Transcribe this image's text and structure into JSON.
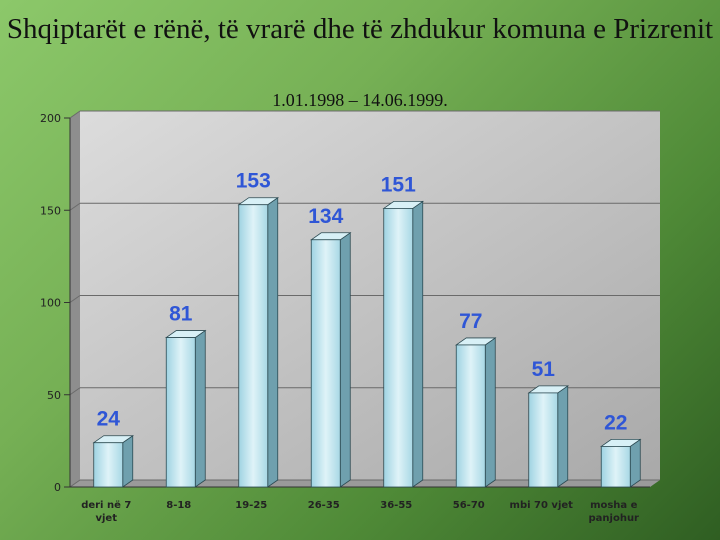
{
  "slide": {
    "title": "Shqiptarët e rënë, të vrarë dhe të zhdukur komuna e Prizrenit",
    "subtitle": "1.01.1998 – 14.06.1999."
  },
  "colors": {
    "bar_front": "#b6e2ee",
    "bar_side": "#6fa0ae",
    "bar_top": "#d8f0f6",
    "data_label": "#2f56d6"
  },
  "chart_data": {
    "type": "bar",
    "title": "",
    "xlabel": "",
    "ylabel": "",
    "ylim": [
      0,
      200
    ],
    "yticks": [
      0,
      50,
      100,
      150,
      200
    ],
    "grid": true,
    "categories": [
      [
        "deri në 7",
        "vjet"
      ],
      [
        "8-18"
      ],
      [
        "19-25"
      ],
      [
        "26-35"
      ],
      [
        "36-55"
      ],
      [
        "56-70"
      ],
      [
        "mbi 70 vjet"
      ],
      [
        "mosha e",
        "panjohur"
      ]
    ],
    "values": [
      24,
      81,
      153,
      134,
      151,
      77,
      51,
      22
    ]
  }
}
